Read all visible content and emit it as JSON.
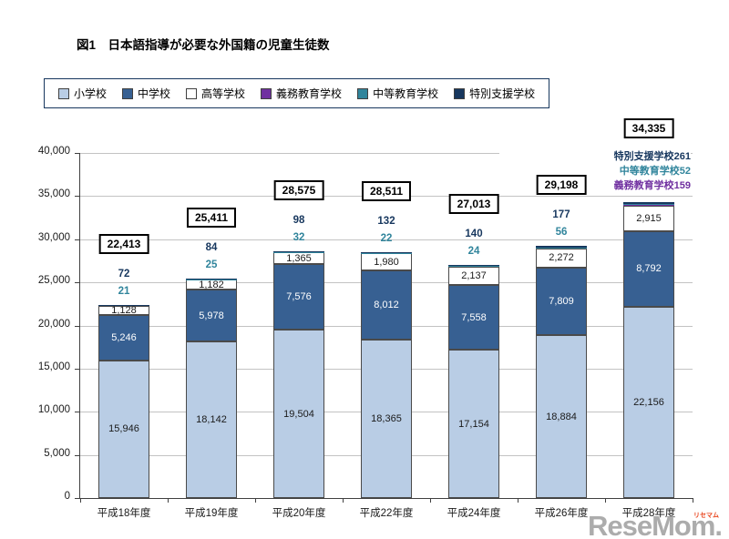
{
  "title": "図1　日本語指導が必要な外国籍の児童生徒数",
  "watermark": {
    "text": "ReseMom.",
    "sub": "リセマム"
  },
  "chart_data": {
    "type": "bar",
    "stacked": true,
    "title": "図1　日本語指導が必要な外国籍の児童生徒数",
    "categories": [
      "平成18年度",
      "平成19年度",
      "平成20年度",
      "平成22年度",
      "平成24年度",
      "平成26年度",
      "平成28年度"
    ],
    "series": [
      {
        "name": "小学校",
        "color": "#b9cde5",
        "label_color": "#1a1a1a",
        "values": [
          15946,
          18142,
          19504,
          18365,
          17154,
          18884,
          22156
        ]
      },
      {
        "name": "中学校",
        "color": "#376092",
        "label_color": "#ffffff",
        "values": [
          5246,
          5978,
          7576,
          8012,
          7558,
          7809,
          8792
        ]
      },
      {
        "name": "高等学校",
        "color": "#ffffff",
        "label_color": "#1a1a1a",
        "values": [
          1128,
          1182,
          1365,
          1980,
          2137,
          2272,
          2915
        ]
      },
      {
        "name": "義務教育学校",
        "color": "#7030a0",
        "label_color": "#ffffff",
        "values": [
          0,
          0,
          0,
          0,
          0,
          0,
          159
        ]
      },
      {
        "name": "中等教育学校",
        "color": "#31859c",
        "label_color": "#ffffff",
        "values": [
          21,
          25,
          32,
          22,
          24,
          56,
          52
        ]
      },
      {
        "name": "特別支援学校",
        "color": "#17375e",
        "label_color": "#ffffff",
        "values": [
          72,
          84,
          98,
          132,
          140,
          177,
          261
        ]
      }
    ],
    "totals": [
      22413,
      25411,
      28575,
      28511,
      27013,
      29198,
      34335
    ],
    "above_bar_annotation_series": [
      "特別支援学校",
      "中等教育学校"
    ],
    "side_annotations": [
      {
        "series": "特別支援学校",
        "value": 261
      },
      {
        "series": "中等教育学校",
        "value": 52
      },
      {
        "series": "義務教育学校",
        "value": 159
      }
    ],
    "xlabel": "",
    "ylabel": "",
    "ylim": [
      0,
      40000
    ],
    "ytick_step": 5000,
    "grid": true,
    "legend_position": "top"
  }
}
